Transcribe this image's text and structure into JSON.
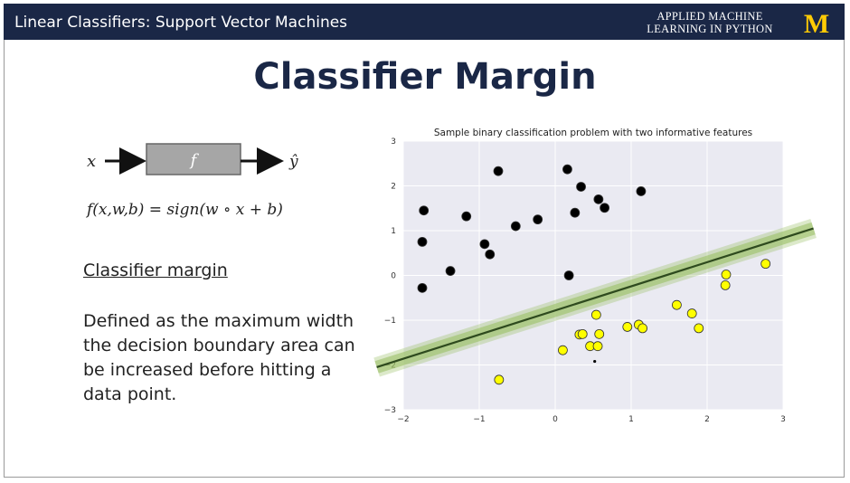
{
  "header": {
    "course_title": "Linear Classifiers: Support Vector Machines",
    "brand_line1": "APPLIED MACHINE",
    "brand_line2": "LEARNING IN PYTHON",
    "logo_text": "M",
    "logo_color": "#ffcb05",
    "bar_color": "#1a2746"
  },
  "slide": {
    "title": "Classifier Margin",
    "diagram": {
      "input": "x",
      "function": "f",
      "output": "ŷ"
    },
    "formula": "f(x,w,b) = sign(w ∘ x + b)",
    "heading": "Classifier margin",
    "description": "Defined as the maximum width the decision boundary area can be increased before hitting a data point."
  },
  "chart_data": {
    "type": "scatter",
    "title": "Sample binary classification problem with two informative features",
    "xlim": [
      -2,
      3
    ],
    "ylim": [
      -3,
      3
    ],
    "xticks": [
      "−2",
      "−1",
      "0",
      "1",
      "2",
      "3"
    ],
    "yticks": [
      "3",
      "2",
      "1",
      "0",
      "−1",
      "−2",
      "−3"
    ],
    "grid": true,
    "background": "#eaeaf2",
    "series": [
      {
        "color": "#000000",
        "points": [
          [
            -1.73,
            1.45
          ],
          [
            -1.75,
            0.75
          ],
          [
            -1.75,
            -0.28
          ],
          [
            -1.38,
            0.1
          ],
          [
            -1.17,
            1.32
          ],
          [
            -0.93,
            0.7
          ],
          [
            -0.86,
            0.47
          ],
          [
            -0.75,
            2.33
          ],
          [
            -0.52,
            1.1
          ],
          [
            -0.23,
            1.25
          ],
          [
            0.16,
            2.37
          ],
          [
            0.18,
            0.0
          ],
          [
            0.26,
            1.4
          ],
          [
            0.34,
            1.98
          ],
          [
            0.57,
            1.7
          ],
          [
            0.65,
            1.51
          ],
          [
            1.13,
            1.88
          ]
        ]
      },
      {
        "color": "#ffff00",
        "points": [
          [
            -0.74,
            -2.33
          ],
          [
            0.1,
            -1.67
          ],
          [
            0.32,
            -1.32
          ],
          [
            0.36,
            -1.31
          ],
          [
            0.46,
            -1.58
          ],
          [
            0.54,
            -0.88
          ],
          [
            0.56,
            -1.58
          ],
          [
            0.58,
            -1.31
          ],
          [
            0.95,
            -1.15
          ],
          [
            1.1,
            -1.1
          ],
          [
            1.15,
            -1.18
          ],
          [
            1.6,
            -0.66
          ],
          [
            1.8,
            -0.85
          ],
          [
            1.89,
            -1.18
          ],
          [
            2.25,
            0.02
          ],
          [
            2.24,
            -0.22
          ],
          [
            2.77,
            0.26
          ]
        ]
      }
    ],
    "small_point": [
      0.52,
      -1.92
    ],
    "boundary": {
      "x1": -2.35,
      "y1": -2.05,
      "x2": 3.4,
      "y2": 1.05,
      "line_color": "#2e4a1e",
      "margin_color": "#9bbf66"
    }
  }
}
